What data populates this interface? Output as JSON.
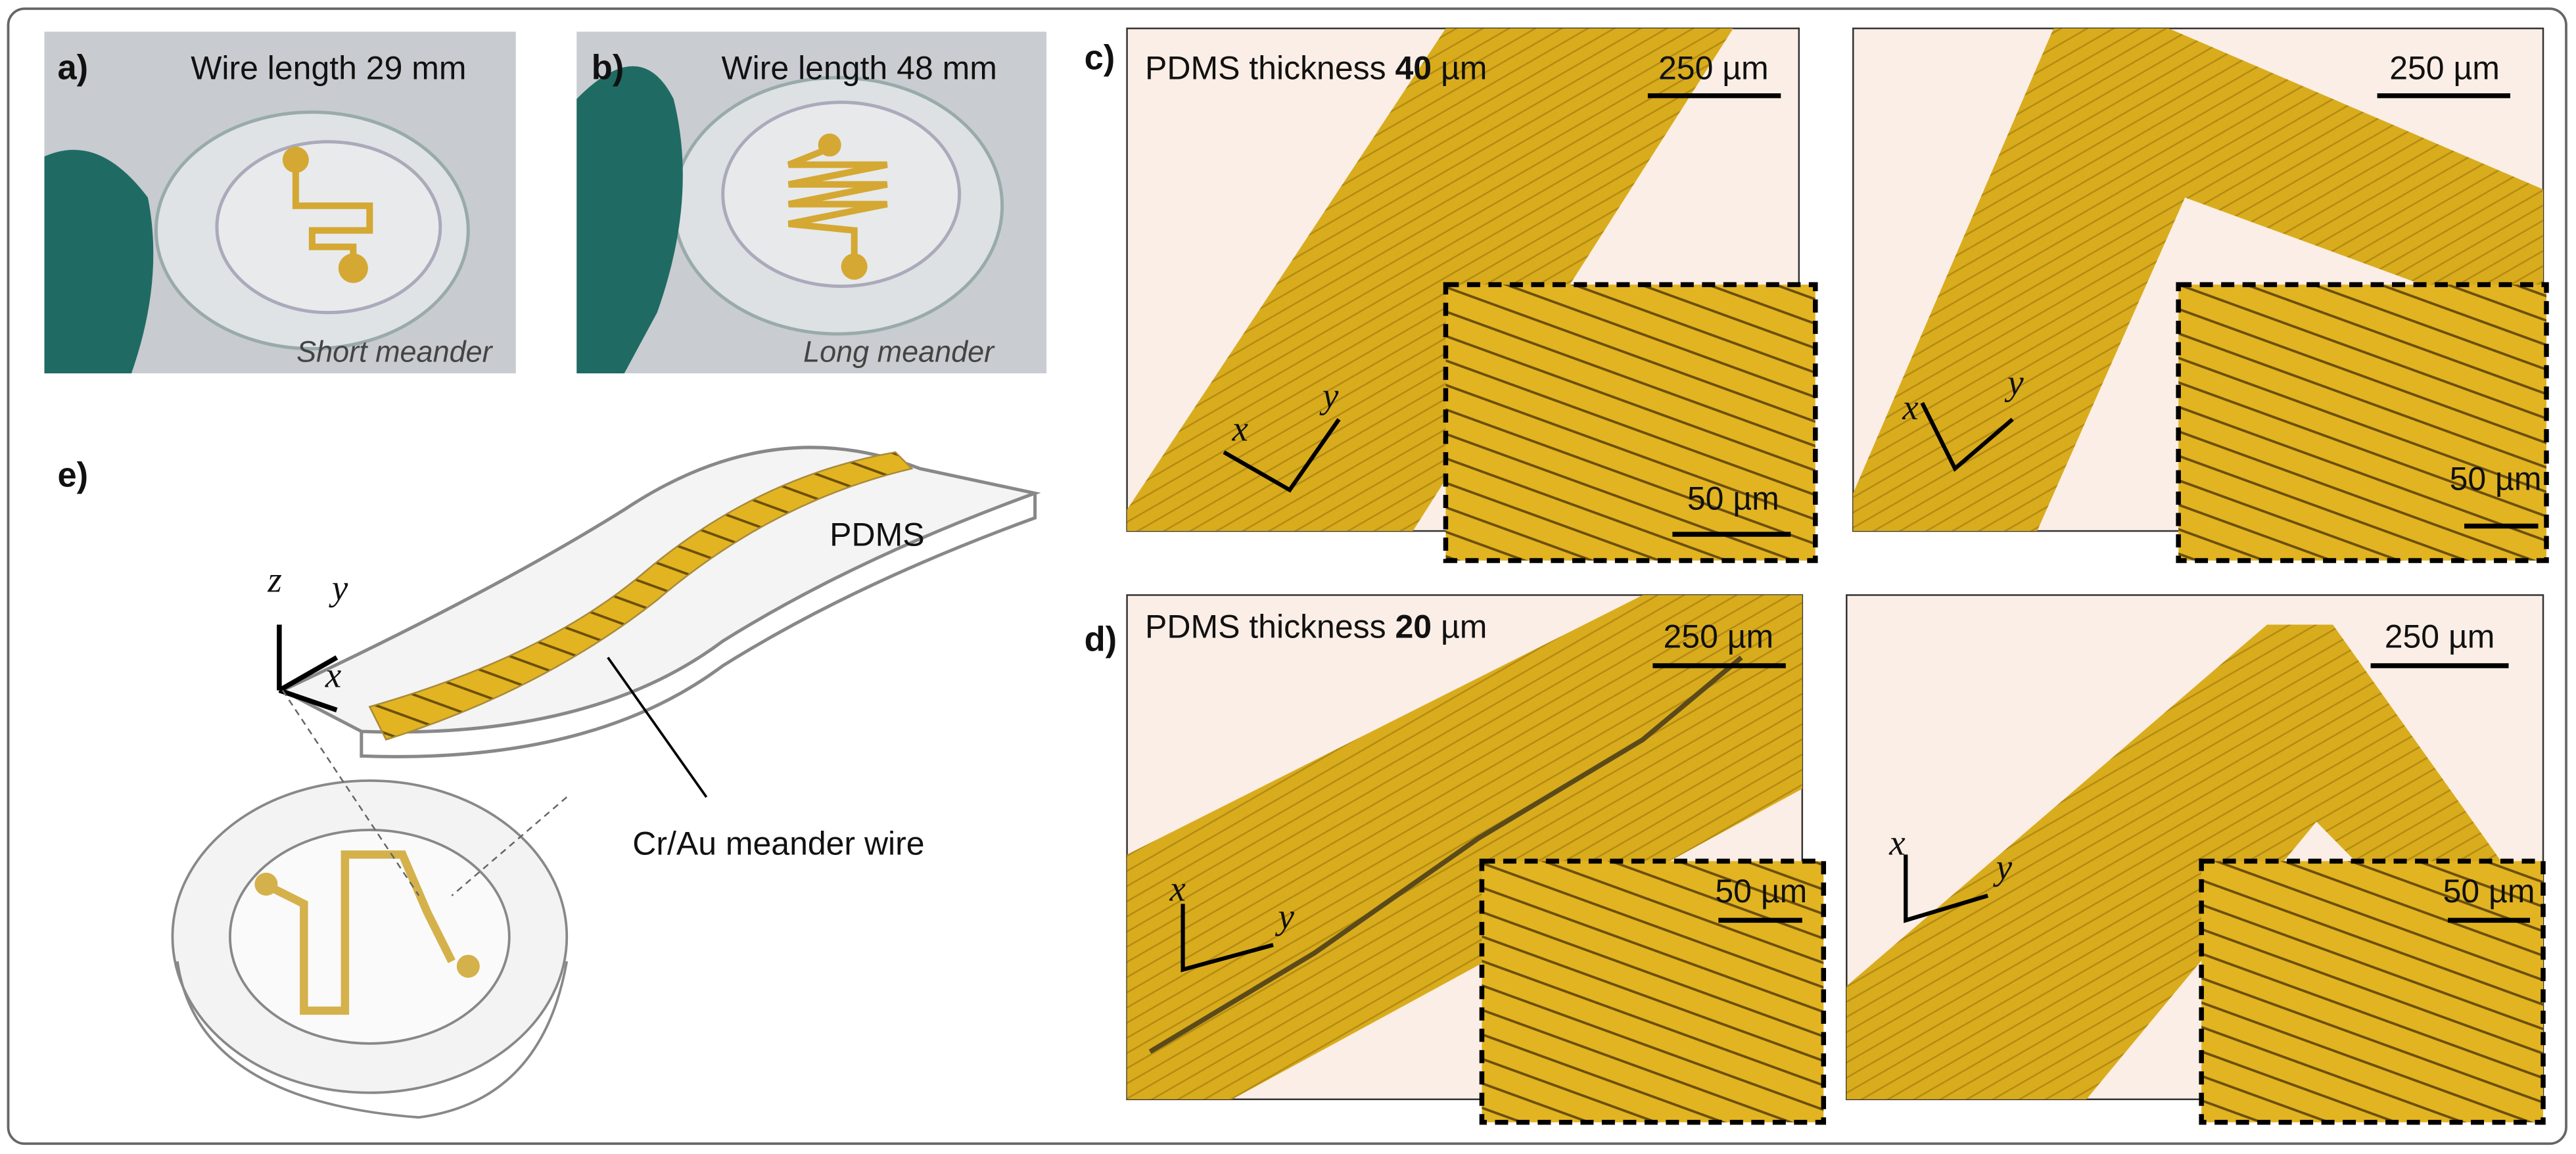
{
  "panels": {
    "a": {
      "label": "a)",
      "title": "Wire length 29 mm",
      "caption": "Short meander"
    },
    "b": {
      "label": "b)",
      "title": "Wire length 48 mm",
      "caption": "Long meander"
    },
    "c": {
      "label": "c)",
      "title_prefix": "PDMS thickness",
      "title_value": "40",
      "title_unit": "µm",
      "images": [
        {
          "scale_bar": "250 µm",
          "inset_scale_bar": "50 µm",
          "axis_x": "x",
          "axis_y": "y"
        },
        {
          "scale_bar": "250 µm",
          "inset_scale_bar": "50 µm",
          "axis_x": "x",
          "axis_y": "y"
        }
      ]
    },
    "d": {
      "label": "d)",
      "title_prefix": "PDMS thickness",
      "title_value": "20",
      "title_unit": "µm",
      "images": [
        {
          "scale_bar": "250 µm",
          "inset_scale_bar": "50 µm",
          "axis_x": "x",
          "axis_y": "y"
        },
        {
          "scale_bar": "250 µm",
          "inset_scale_bar": "50 µm",
          "axis_x": "x",
          "axis_y": "y"
        }
      ]
    },
    "e": {
      "label": "e)",
      "substrate_label": "PDMS",
      "wire_label": "Cr/Au meander wire",
      "axis_z": "z",
      "axis_y": "y",
      "axis_x": "x"
    }
  }
}
